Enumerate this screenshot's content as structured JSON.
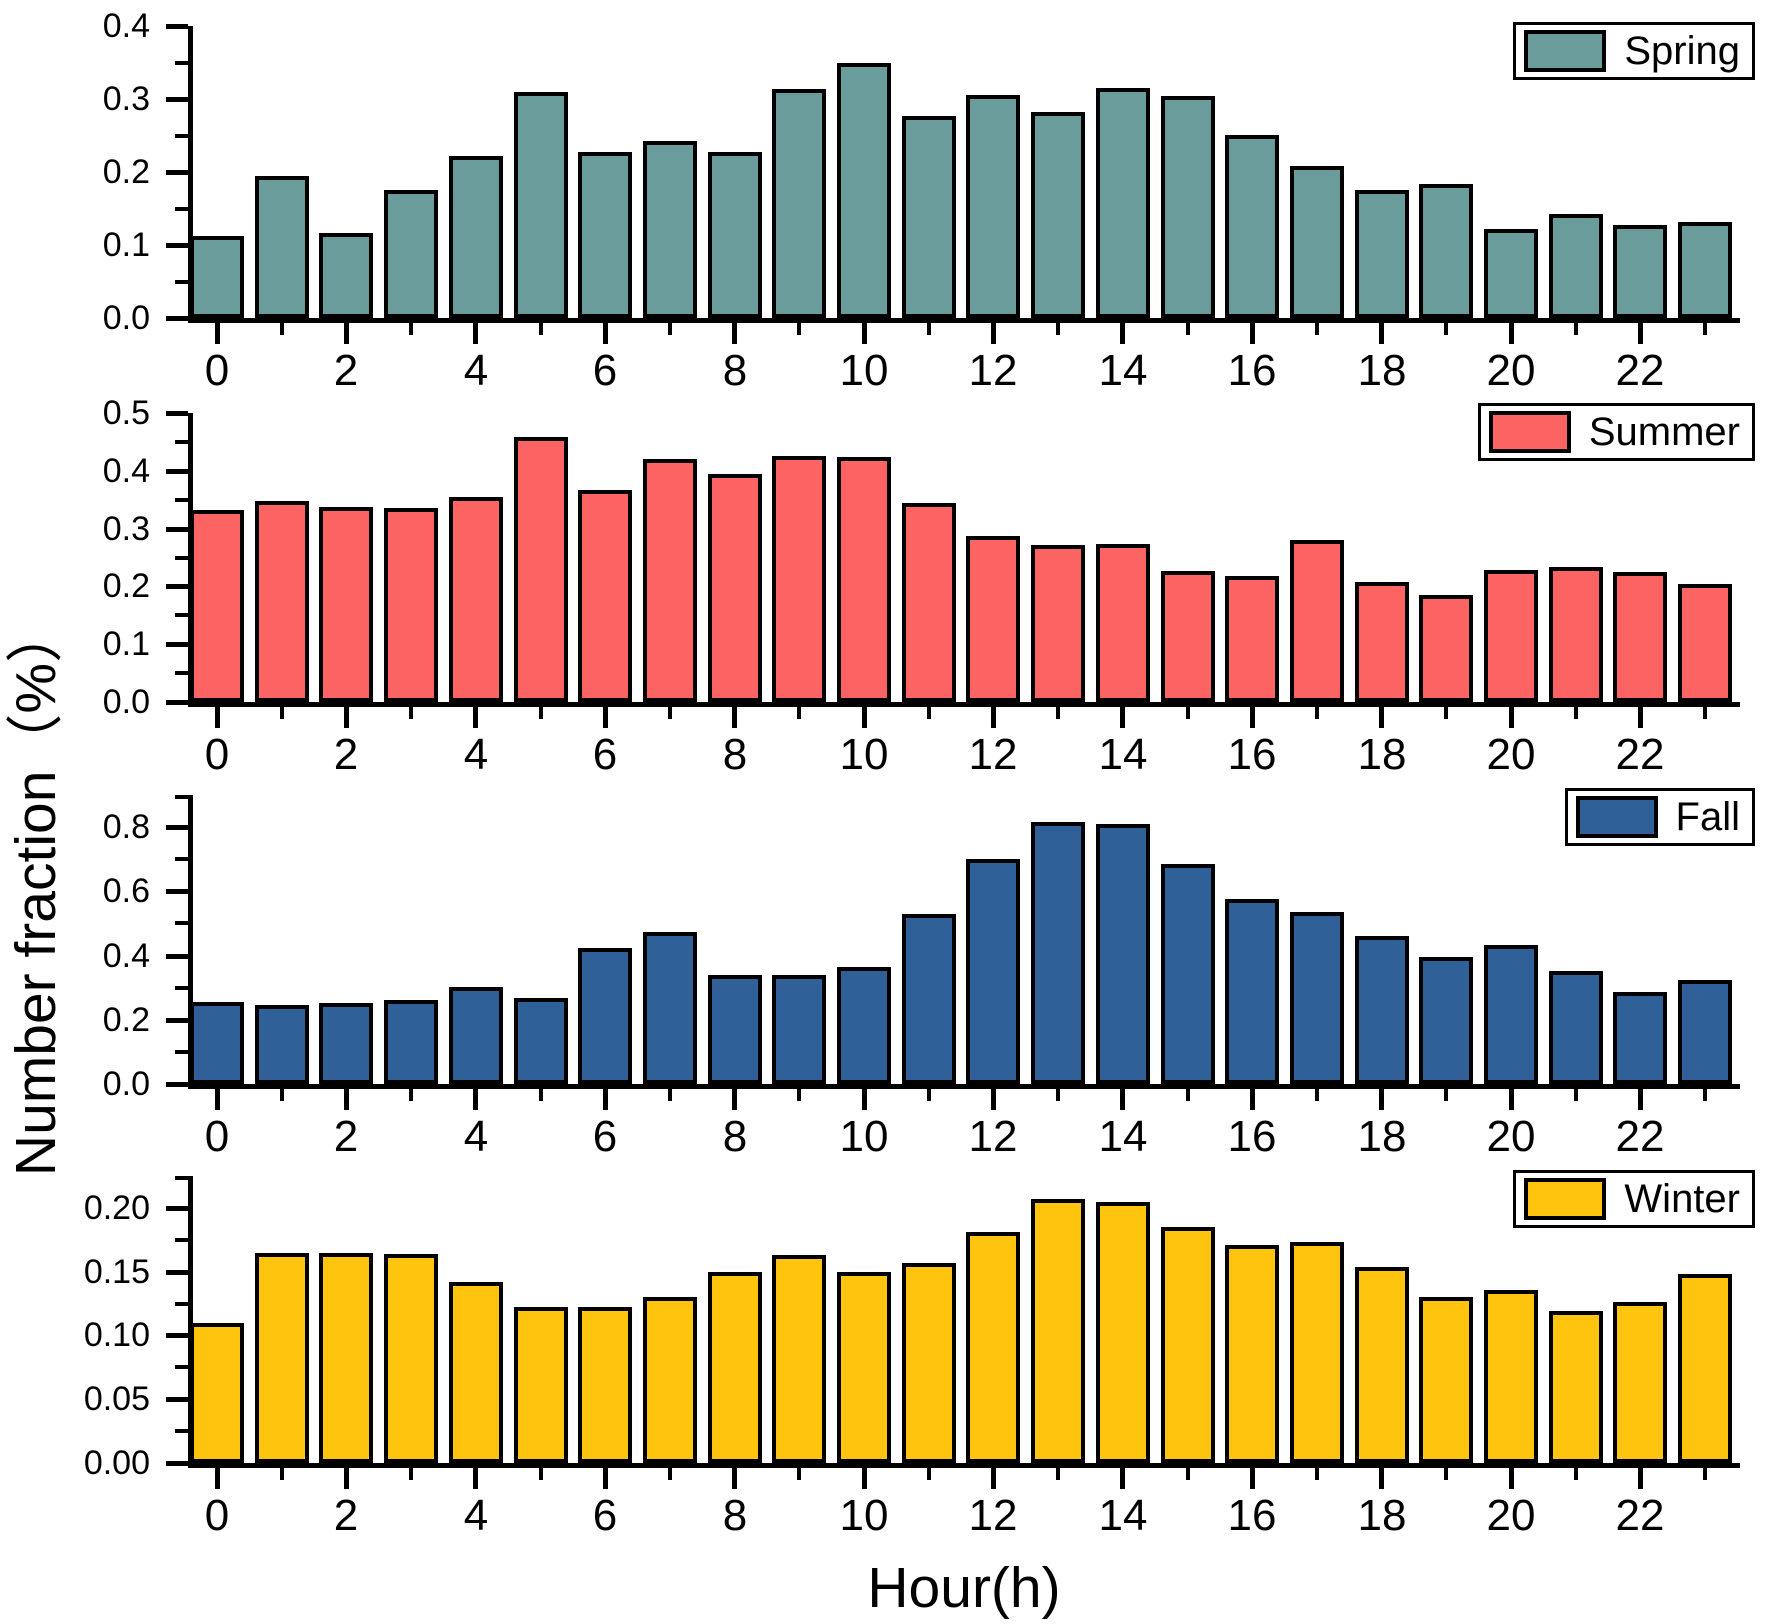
{
  "chart_data": {
    "type": "bar",
    "xlabel": "Hour(h)",
    "ylabel": "Number fraction（%）",
    "x": [
      0,
      1,
      2,
      3,
      4,
      5,
      6,
      7,
      8,
      9,
      10,
      11,
      12,
      13,
      14,
      15,
      16,
      17,
      18,
      19,
      20,
      21,
      22,
      23
    ],
    "x_major_tick_labels": [
      "0",
      "2",
      "4",
      "6",
      "8",
      "10",
      "12",
      "14",
      "16",
      "18",
      "20",
      "22"
    ],
    "layout_hints": {
      "panels": "4 vertically stacked subplots sharing the same hourly x-axis",
      "legend_position": "top-right inside each panel",
      "grid": false,
      "bar_outline": "#000000"
    },
    "series": [
      {
        "name": "Spring",
        "color": "#6a9c9c",
        "ylim": [
          0,
          0.4
        ],
        "ytick_values": [
          0,
          0.1,
          0.2,
          0.3,
          0.4
        ],
        "ytick_labels": [
          "0.0",
          "0.1",
          "0.2",
          "0.3",
          "0.4"
        ],
        "minor_tick_values": [
          0.05,
          0.15,
          0.25,
          0.35
        ],
        "axis_max": 0.4,
        "values": [
          0.112,
          0.195,
          0.116,
          0.176,
          0.222,
          0.309,
          0.227,
          0.242,
          0.227,
          0.314,
          0.35,
          0.277,
          0.305,
          0.282,
          0.315,
          0.304,
          0.25,
          0.208,
          0.175,
          0.184,
          0.122,
          0.143,
          0.128,
          0.131
        ]
      },
      {
        "name": "Summer",
        "color": "#fb6462",
        "ylim": [
          0,
          0.5
        ],
        "ytick_values": [
          0,
          0.1,
          0.2,
          0.3,
          0.4,
          0.5
        ],
        "ytick_labels": [
          "0.0",
          "0.1",
          "0.2",
          "0.3",
          "0.4",
          "0.5"
        ],
        "minor_tick_values": [
          0.05,
          0.15,
          0.25,
          0.35,
          0.45
        ],
        "axis_max": 0.5,
        "values": [
          0.332,
          0.348,
          0.338,
          0.336,
          0.355,
          0.458,
          0.366,
          0.42,
          0.395,
          0.426,
          0.424,
          0.345,
          0.288,
          0.271,
          0.273,
          0.227,
          0.218,
          0.281,
          0.207,
          0.185,
          0.229,
          0.234,
          0.225,
          0.204
        ]
      },
      {
        "name": "Fall",
        "color": "#2f6097",
        "ylim": [
          0,
          0.9
        ],
        "ytick_values": [
          0,
          0.2,
          0.4,
          0.6,
          0.8
        ],
        "ytick_labels": [
          "0.0",
          "0.2",
          "0.4",
          "0.6",
          "0.8"
        ],
        "minor_tick_values": [
          0.1,
          0.3,
          0.5,
          0.7,
          0.9
        ],
        "axis_max": 0.9,
        "values": [
          0.255,
          0.246,
          0.251,
          0.261,
          0.303,
          0.269,
          0.424,
          0.473,
          0.34,
          0.34,
          0.365,
          0.53,
          0.7,
          0.815,
          0.81,
          0.685,
          0.576,
          0.535,
          0.46,
          0.395,
          0.432,
          0.352,
          0.288,
          0.325
        ]
      },
      {
        "name": "Winter",
        "color": "#ffc40e",
        "ylim": [
          0,
          0.225
        ],
        "ytick_values": [
          0,
          0.05,
          0.1,
          0.15,
          0.2
        ],
        "ytick_labels": [
          "0.00",
          "0.05",
          "0.10",
          "0.15",
          "0.20"
        ],
        "minor_tick_values": [
          0.025,
          0.075,
          0.125,
          0.175,
          0.225
        ],
        "axis_max": 0.225,
        "values": [
          0.11,
          0.165,
          0.165,
          0.164,
          0.142,
          0.122,
          0.122,
          0.13,
          0.15,
          0.163,
          0.15,
          0.157,
          0.181,
          0.207,
          0.205,
          0.185,
          0.171,
          0.173,
          0.154,
          0.13,
          0.136,
          0.119,
          0.126,
          0.148
        ]
      }
    ]
  }
}
